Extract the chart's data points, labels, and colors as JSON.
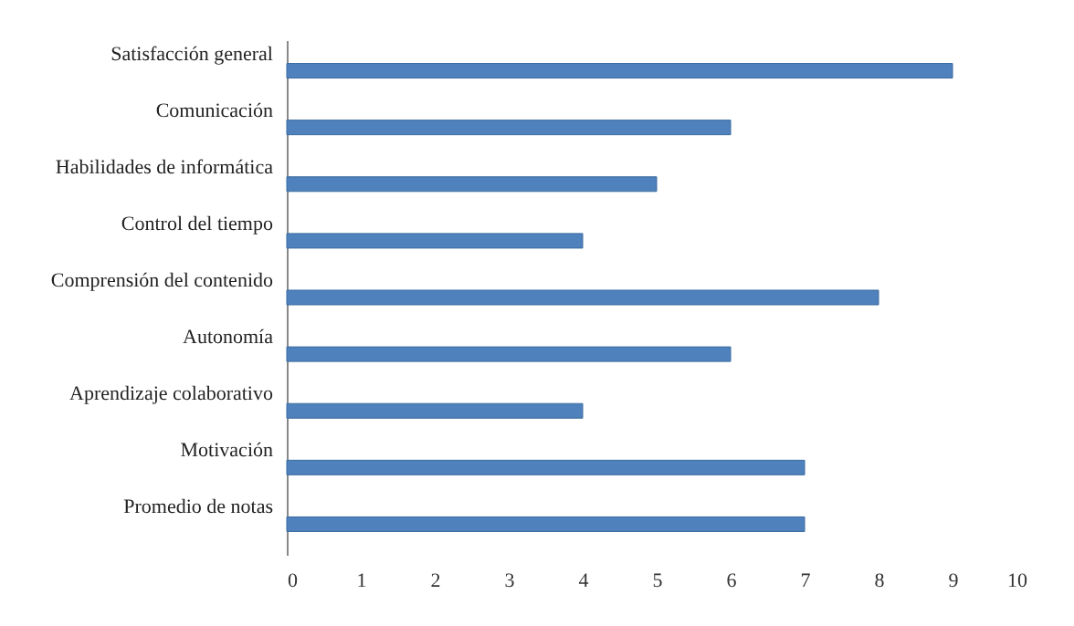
{
  "chart_data": {
    "type": "bar",
    "orientation": "horizontal",
    "categories": [
      "Satisfacción general",
      "Comunicación",
      "Habilidades de informática",
      "Control del tiempo",
      "Comprensión del contenido",
      "Autonomía",
      "Aprendizaje colaborativo",
      "Motivación",
      "Promedio de notas"
    ],
    "values": [
      9,
      6,
      5,
      4,
      8,
      6,
      4,
      7,
      7
    ],
    "color": "#4f81bd",
    "xlim": [
      0,
      10
    ],
    "xticks": [
      0,
      1,
      2,
      3,
      4,
      5,
      6,
      7,
      8,
      9,
      10
    ],
    "grid": false
  }
}
